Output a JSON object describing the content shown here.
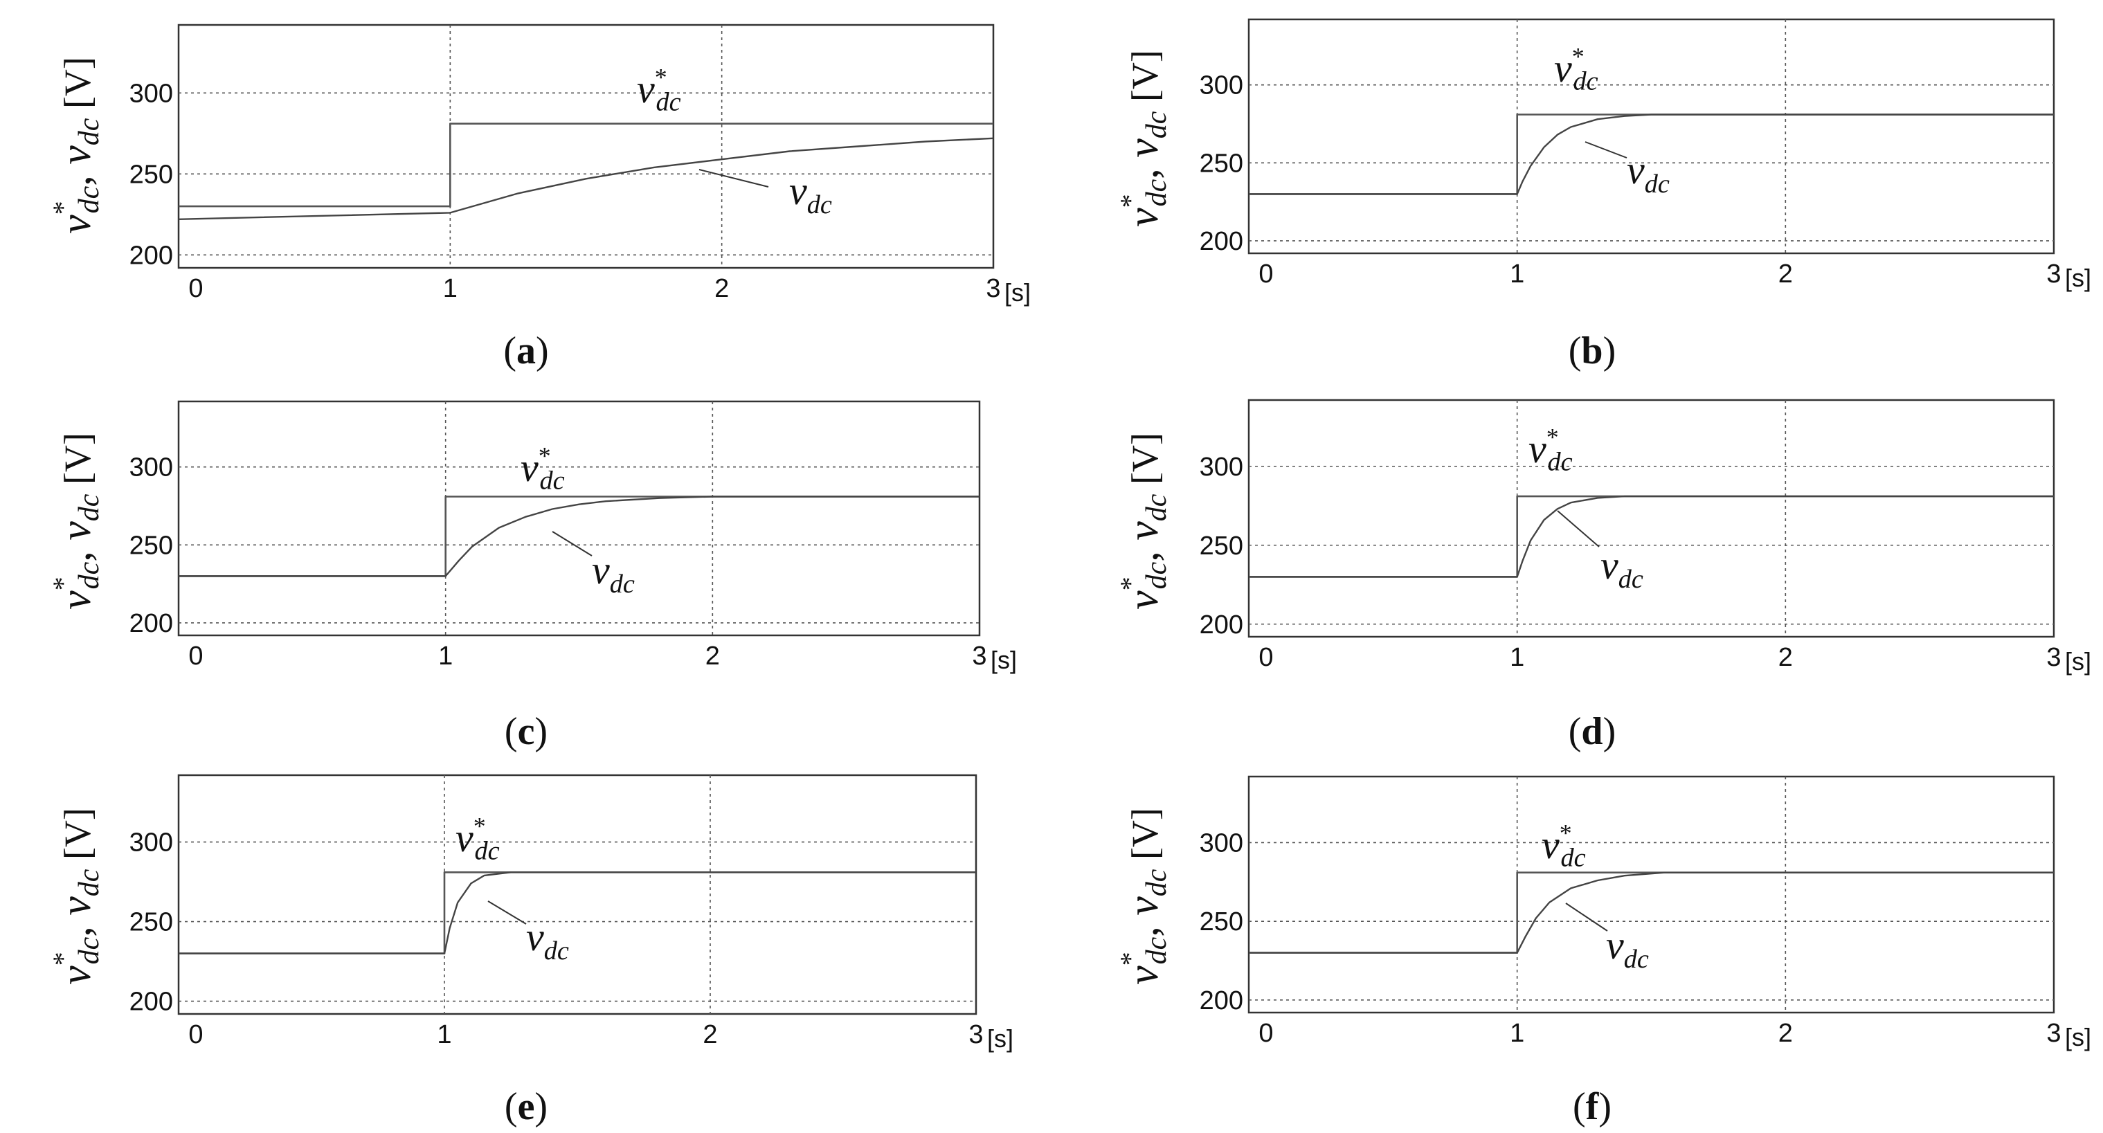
{
  "figure": {
    "x_unit_label": "[s]",
    "y_axis_label": {
      "main": "v",
      "sub": "dc",
      "star": "*",
      "separator": ",",
      "unit": "[V]"
    },
    "annotations": {
      "reference": {
        "main": "v",
        "sub": "dc",
        "star": "*"
      },
      "measured": {
        "main": "v",
        "sub": "dc"
      }
    }
  },
  "chart_data": [
    {
      "type": "line",
      "caption": {
        "open": "(",
        "letter": "a",
        "close": ")"
      },
      "xlim": [
        0,
        3
      ],
      "ylim": [
        200,
        300
      ],
      "x_ticks": [
        "0",
        "1",
        "2",
        "3"
      ],
      "y_ticks": [
        "200",
        "250",
        "300"
      ],
      "grid": true,
      "series": [
        {
          "name": "v*dc",
          "points": [
            [
              0,
              230
            ],
            [
              1,
              230
            ],
            [
              1,
              281
            ],
            [
              3,
              281
            ]
          ]
        },
        {
          "name": "vdc",
          "points": [
            [
              0,
              222
            ],
            [
              1,
              226
            ],
            [
              1.25,
              238
            ],
            [
              1.5,
              247
            ],
            [
              1.75,
              254
            ],
            [
              2,
              259
            ],
            [
              2.25,
              264
            ],
            [
              2.5,
              267
            ],
            [
              2.75,
              270
            ],
            [
              3,
              272
            ]
          ]
        }
      ]
    },
    {
      "type": "line",
      "caption": {
        "open": "(",
        "letter": "b",
        "close": ")"
      },
      "xlim": [
        0,
        3
      ],
      "ylim": [
        200,
        300
      ],
      "x_ticks": [
        "0",
        "1",
        "2",
        "3"
      ],
      "y_ticks": [
        "200",
        "250",
        "300"
      ],
      "grid": true,
      "series": [
        {
          "name": "v*dc",
          "points": [
            [
              0,
              230
            ],
            [
              1,
              230
            ],
            [
              1,
              281
            ],
            [
              3,
              281
            ]
          ]
        },
        {
          "name": "vdc",
          "points": [
            [
              0,
              230
            ],
            [
              1,
              230
            ],
            [
              1.02,
              238
            ],
            [
              1.05,
              248
            ],
            [
              1.1,
              260
            ],
            [
              1.15,
              268
            ],
            [
              1.2,
              273
            ],
            [
              1.3,
              278
            ],
            [
              1.4,
              280
            ],
            [
              1.5,
              281
            ],
            [
              3,
              281
            ]
          ]
        }
      ]
    },
    {
      "type": "line",
      "caption": {
        "open": "(",
        "letter": "c",
        "close": ")"
      },
      "xlim": [
        0,
        3
      ],
      "ylim": [
        200,
        300
      ],
      "x_ticks": [
        "0",
        "1",
        "2",
        "3"
      ],
      "y_ticks": [
        "200",
        "250",
        "300"
      ],
      "grid": true,
      "series": [
        {
          "name": "v*dc",
          "points": [
            [
              0,
              230
            ],
            [
              1,
              230
            ],
            [
              1,
              281
            ],
            [
              3,
              281
            ]
          ]
        },
        {
          "name": "vdc",
          "points": [
            [
              0,
              230
            ],
            [
              1,
              230
            ],
            [
              1.05,
              240
            ],
            [
              1.1,
              249
            ],
            [
              1.2,
              261
            ],
            [
              1.3,
              268
            ],
            [
              1.4,
              273
            ],
            [
              1.5,
              276
            ],
            [
              1.6,
              278
            ],
            [
              1.8,
              280
            ],
            [
              2,
              281
            ],
            [
              3,
              281
            ]
          ]
        }
      ]
    },
    {
      "type": "line",
      "caption": {
        "open": "(",
        "letter": "d",
        "close": ")"
      },
      "xlim": [
        0,
        3
      ],
      "ylim": [
        200,
        300
      ],
      "x_ticks": [
        "0",
        "1",
        "2",
        "3"
      ],
      "y_ticks": [
        "200",
        "250",
        "300"
      ],
      "grid": true,
      "series": [
        {
          "name": "v*dc",
          "points": [
            [
              0,
              230
            ],
            [
              1,
              230
            ],
            [
              1,
              281
            ],
            [
              3,
              281
            ]
          ]
        },
        {
          "name": "vdc",
          "points": [
            [
              0,
              230
            ],
            [
              1,
              230
            ],
            [
              1.02,
              240
            ],
            [
              1.05,
              253
            ],
            [
              1.1,
              266
            ],
            [
              1.15,
              273
            ],
            [
              1.2,
              277
            ],
            [
              1.3,
              280
            ],
            [
              1.4,
              281
            ],
            [
              3,
              281
            ]
          ]
        }
      ]
    },
    {
      "type": "line",
      "caption": {
        "open": "(",
        "letter": "e",
        "close": ")"
      },
      "xlim": [
        0,
        3
      ],
      "ylim": [
        200,
        300
      ],
      "x_ticks": [
        "0",
        "1",
        "2",
        "3"
      ],
      "y_ticks": [
        "200",
        "250",
        "300"
      ],
      "grid": true,
      "series": [
        {
          "name": "v*dc",
          "points": [
            [
              0,
              230
            ],
            [
              1,
              230
            ],
            [
              1,
              281
            ],
            [
              3,
              281
            ]
          ]
        },
        {
          "name": "vdc",
          "points": [
            [
              0,
              230
            ],
            [
              1,
              230
            ],
            [
              1.02,
              246
            ],
            [
              1.05,
              262
            ],
            [
              1.1,
              274
            ],
            [
              1.15,
              279
            ],
            [
              1.25,
              281
            ],
            [
              3,
              281
            ]
          ]
        }
      ]
    },
    {
      "type": "line",
      "caption": {
        "open": "(",
        "letter": "f",
        "close": ")"
      },
      "xlim": [
        0,
        3
      ],
      "ylim": [
        200,
        300
      ],
      "x_ticks": [
        "0",
        "1",
        "2",
        "3"
      ],
      "y_ticks": [
        "200",
        "250",
        "300"
      ],
      "grid": true,
      "series": [
        {
          "name": "v*dc",
          "points": [
            [
              0,
              230
            ],
            [
              1,
              230
            ],
            [
              1,
              281
            ],
            [
              3,
              281
            ]
          ]
        },
        {
          "name": "vdc",
          "points": [
            [
              0,
              230
            ],
            [
              1,
              230
            ],
            [
              1.03,
              240
            ],
            [
              1.07,
              252
            ],
            [
              1.12,
              262
            ],
            [
              1.2,
              271
            ],
            [
              1.3,
              276
            ],
            [
              1.4,
              279
            ],
            [
              1.55,
              281
            ],
            [
              3,
              281
            ]
          ]
        }
      ]
    }
  ]
}
